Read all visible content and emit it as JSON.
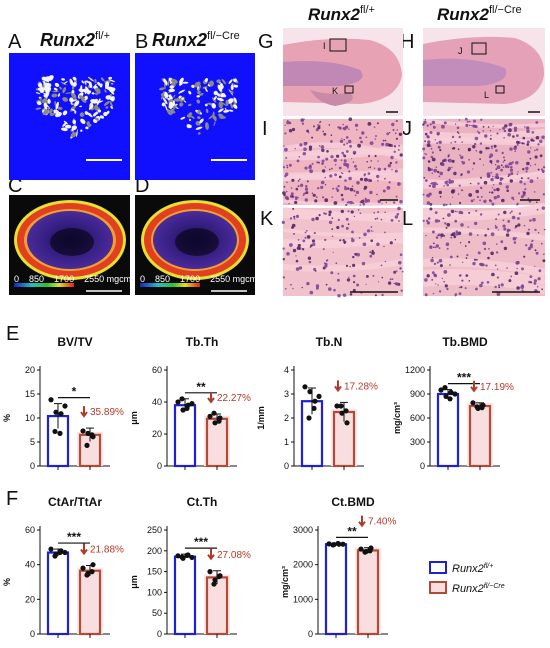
{
  "headers": {
    "left_gene": "Runx2",
    "left_sup": "fl/+",
    "right_gene": "Runx2",
    "right_sup": "fl/−Cre"
  },
  "panel_letters": [
    "A",
    "B",
    "C",
    "D",
    "E",
    "F",
    "G",
    "H",
    "I",
    "J",
    "K",
    "L"
  ],
  "micro_ct": {
    "background_blue": "#1010ff",
    "scale_labels": [
      "0",
      "850",
      "1700",
      "2550 mgcm³"
    ]
  },
  "histology": {
    "box_labels": [
      "I",
      "K",
      "J",
      "L"
    ],
    "stain_pink": "#e79aa8",
    "stain_purple": "#7b3f93"
  },
  "legend": {
    "wt": {
      "gene": "Runx2",
      "sup": "fl/+",
      "color": "#1f1fd6"
    },
    "ko": {
      "gene": "Runx2",
      "sup": "fl/−Cre",
      "color": "#b24a3a"
    }
  },
  "chart_data": [
    {
      "type": "bar",
      "title": "BV/TV",
      "ylabel": "%",
      "ylim": [
        0,
        20
      ],
      "yticks": [
        0,
        5,
        10,
        15,
        20
      ],
      "categories": [
        "Runx2 fl/+",
        "Runx2 fl/−Cre"
      ],
      "values": [
        10.4,
        6.5
      ],
      "errors": [
        2.6,
        1.4
      ],
      "points": [
        [
          13.8,
          11.2,
          10.9,
          7.2,
          6.8,
          12.5
        ],
        [
          7.3,
          6.8,
          6.1,
          4.3,
          6.5
        ]
      ],
      "sig": "*",
      "change": "35.89%"
    },
    {
      "type": "bar",
      "title": "Tb.Th",
      "ylabel": "μm",
      "ylim": [
        0,
        60
      ],
      "yticks": [
        0,
        20,
        40,
        60
      ],
      "categories": [
        "Runx2 fl/+",
        "Runx2 fl/−Cre"
      ],
      "values": [
        38,
        29.5
      ],
      "errors": [
        4,
        3
      ],
      "points": [
        [
          40,
          35,
          38,
          42,
          36,
          39
        ],
        [
          31,
          27,
          30,
          33,
          28
        ]
      ],
      "sig": "**",
      "change": "22.27%"
    },
    {
      "type": "bar",
      "title": "Tb.N",
      "ylabel": "1/mm",
      "ylim": [
        0,
        4
      ],
      "yticks": [
        0,
        1,
        2,
        3,
        4
      ],
      "categories": [
        "Runx2 fl/+",
        "Runx2 fl/−Cre"
      ],
      "values": [
        2.7,
        2.25
      ],
      "errors": [
        0.55,
        0.4
      ],
      "points": [
        [
          3.3,
          3.1,
          2.7,
          2.0,
          2.4,
          2.9
        ],
        [
          2.5,
          2.2,
          1.8,
          2.5,
          2.3
        ]
      ],
      "sig": "",
      "change": "17.28%"
    },
    {
      "type": "bar",
      "title": "Tb.BMD",
      "ylabel": "mg/cm³",
      "ylim": [
        0,
        1200
      ],
      "yticks": [
        0,
        300,
        600,
        900,
        1200
      ],
      "categories": [
        "Runx2 fl/+",
        "Runx2 fl/−Cre"
      ],
      "values": [
        900,
        750
      ],
      "errors": [
        55,
        40
      ],
      "points": [
        [
          950,
          870,
          920,
          980,
          840,
          900
        ],
        [
          790,
          720,
          760,
          740,
          730
        ]
      ],
      "sig": "***",
      "change": "17.19%"
    },
    {
      "type": "bar",
      "title": "CtAr/TtAr",
      "ylabel": "%",
      "ylim": [
        0,
        60
      ],
      "yticks": [
        0,
        20,
        40,
        60
      ],
      "categories": [
        "Runx2 fl/+",
        "Runx2 fl/−Cre"
      ],
      "values": [
        47,
        36.5
      ],
      "errors": [
        2,
        3
      ],
      "points": [
        [
          49,
          46,
          48,
          45,
          47,
          47
        ],
        [
          38,
          35,
          40,
          34,
          36
        ]
      ],
      "sig": "***",
      "change": "21.88%"
    },
    {
      "type": "bar",
      "title": "Ct.Th",
      "ylabel": "μm",
      "ylim": [
        0,
        250
      ],
      "yticks": [
        0,
        50,
        100,
        150,
        200,
        250
      ],
      "categories": [
        "Runx2 fl/+",
        "Runx2 fl/−Cre"
      ],
      "values": [
        186,
        136
      ],
      "errors": [
        6,
        16
      ],
      "points": [
        [
          188,
          182,
          190,
          185,
          189,
          184
        ],
        [
          150,
          130,
          140,
          120,
          138
        ]
      ],
      "sig": "***",
      "change": "27.08%"
    },
    {
      "type": "bar",
      "title": "Ct.BMD",
      "ylabel": "mg/cm³",
      "ylim": [
        0,
        3000
      ],
      "yticks": [
        0,
        1000,
        2000,
        3000
      ],
      "categories": [
        "Runx2 fl/+",
        "Runx2 fl/−Cre"
      ],
      "values": [
        2590,
        2410
      ],
      "errors": [
        25,
        80
      ],
      "points": [
        [
          2600,
          2580,
          2590,
          2570,
          2610,
          2590
        ],
        [
          2450,
          2380,
          2480,
          2360,
          2400
        ]
      ],
      "sig": "**",
      "change": "7.40%"
    }
  ]
}
